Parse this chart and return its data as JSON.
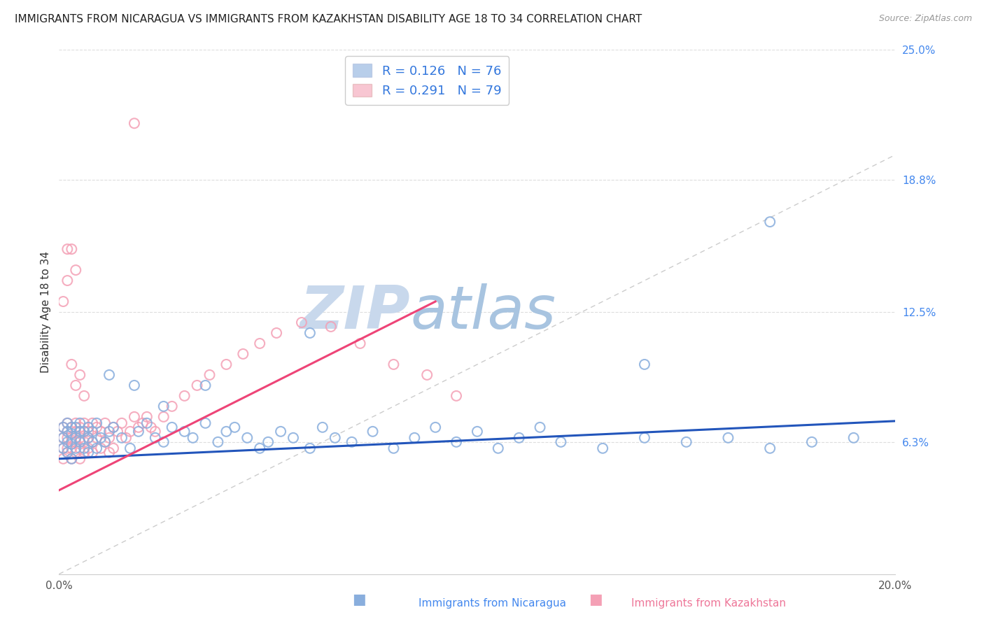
{
  "title": "IMMIGRANTS FROM NICARAGUA VS IMMIGRANTS FROM KAZAKHSTAN DISABILITY AGE 18 TO 34 CORRELATION CHART",
  "source": "Source: ZipAtlas.com",
  "ylabel": "Disability Age 18 to 34",
  "xlim": [
    0.0,
    0.2
  ],
  "ylim": [
    0.0,
    0.25
  ],
  "ytick_right": [
    0.063,
    0.125,
    0.188,
    0.25
  ],
  "ytick_right_labels": [
    "6.3%",
    "12.5%",
    "18.8%",
    "25.0%"
  ],
  "nicaragua_color": "#89AEDD",
  "kazakhstan_color": "#F4A0B5",
  "nicaragua_R": "0.126",
  "nicaragua_N": "76",
  "kazakhstan_R": "0.291",
  "kazakhstan_N": "79",
  "nicaragua_label": "Immigrants from Nicaragua",
  "kazakhstan_label": "Immigrants from Kazakhstan",
  "trend_nicaragua_color": "#2255BB",
  "trend_kazakhstan_color": "#EE4477",
  "watermark_zip": "ZIP",
  "watermark_atlas": "atlas",
  "watermark_color_zip": "#C8D8EC",
  "watermark_color_atlas": "#A8C4E0",
  "nic_x": [
    0.001,
    0.001,
    0.001,
    0.002,
    0.002,
    0.002,
    0.002,
    0.003,
    0.003,
    0.003,
    0.003,
    0.004,
    0.004,
    0.004,
    0.005,
    0.005,
    0.005,
    0.006,
    0.006,
    0.007,
    0.007,
    0.007,
    0.008,
    0.008,
    0.009,
    0.009,
    0.01,
    0.011,
    0.012,
    0.013,
    0.015,
    0.017,
    0.019,
    0.021,
    0.023,
    0.025,
    0.027,
    0.03,
    0.032,
    0.035,
    0.038,
    0.04,
    0.042,
    0.045,
    0.048,
    0.05,
    0.053,
    0.056,
    0.06,
    0.063,
    0.066,
    0.07,
    0.075,
    0.08,
    0.085,
    0.09,
    0.095,
    0.1,
    0.105,
    0.11,
    0.115,
    0.12,
    0.13,
    0.14,
    0.15,
    0.16,
    0.17,
    0.18,
    0.19,
    0.14,
    0.06,
    0.035,
    0.025,
    0.018,
    0.012,
    0.17
  ],
  "nic_y": [
    0.065,
    0.07,
    0.06,
    0.068,
    0.063,
    0.072,
    0.058,
    0.067,
    0.062,
    0.07,
    0.055,
    0.065,
    0.07,
    0.06,
    0.068,
    0.063,
    0.072,
    0.06,
    0.068,
    0.065,
    0.07,
    0.058,
    0.063,
    0.068,
    0.06,
    0.072,
    0.065,
    0.063,
    0.068,
    0.07,
    0.065,
    0.06,
    0.068,
    0.072,
    0.065,
    0.063,
    0.07,
    0.068,
    0.065,
    0.072,
    0.063,
    0.068,
    0.07,
    0.065,
    0.06,
    0.063,
    0.068,
    0.065,
    0.06,
    0.07,
    0.065,
    0.063,
    0.068,
    0.06,
    0.065,
    0.07,
    0.063,
    0.068,
    0.06,
    0.065,
    0.07,
    0.063,
    0.06,
    0.065,
    0.063,
    0.065,
    0.06,
    0.063,
    0.065,
    0.1,
    0.115,
    0.09,
    0.08,
    0.09,
    0.095,
    0.168
  ],
  "kaz_x": [
    0.001,
    0.001,
    0.001,
    0.001,
    0.002,
    0.002,
    0.002,
    0.002,
    0.002,
    0.003,
    0.003,
    0.003,
    0.003,
    0.003,
    0.004,
    0.004,
    0.004,
    0.004,
    0.005,
    0.005,
    0.005,
    0.005,
    0.005,
    0.006,
    0.006,
    0.006,
    0.006,
    0.007,
    0.007,
    0.007,
    0.007,
    0.008,
    0.008,
    0.008,
    0.009,
    0.009,
    0.01,
    0.01,
    0.011,
    0.011,
    0.012,
    0.012,
    0.013,
    0.013,
    0.014,
    0.015,
    0.016,
    0.017,
    0.018,
    0.019,
    0.02,
    0.021,
    0.022,
    0.023,
    0.025,
    0.027,
    0.03,
    0.033,
    0.036,
    0.04,
    0.044,
    0.048,
    0.052,
    0.058,
    0.065,
    0.072,
    0.08,
    0.088,
    0.095,
    0.001,
    0.002,
    0.003,
    0.004,
    0.005,
    0.006,
    0.002,
    0.003,
    0.004,
    0.018
  ],
  "kaz_y": [
    0.065,
    0.055,
    0.07,
    0.06,
    0.065,
    0.058,
    0.072,
    0.06,
    0.068,
    0.063,
    0.07,
    0.055,
    0.065,
    0.06,
    0.068,
    0.063,
    0.072,
    0.058,
    0.065,
    0.07,
    0.06,
    0.068,
    0.055,
    0.063,
    0.068,
    0.072,
    0.058,
    0.065,
    0.07,
    0.06,
    0.068,
    0.063,
    0.072,
    0.058,
    0.065,
    0.07,
    0.06,
    0.068,
    0.063,
    0.072,
    0.058,
    0.065,
    0.07,
    0.06,
    0.068,
    0.072,
    0.065,
    0.068,
    0.075,
    0.07,
    0.072,
    0.075,
    0.07,
    0.068,
    0.075,
    0.08,
    0.085,
    0.09,
    0.095,
    0.1,
    0.105,
    0.11,
    0.115,
    0.12,
    0.118,
    0.11,
    0.1,
    0.095,
    0.085,
    0.13,
    0.14,
    0.1,
    0.09,
    0.095,
    0.085,
    0.155,
    0.155,
    0.145,
    0.215
  ]
}
